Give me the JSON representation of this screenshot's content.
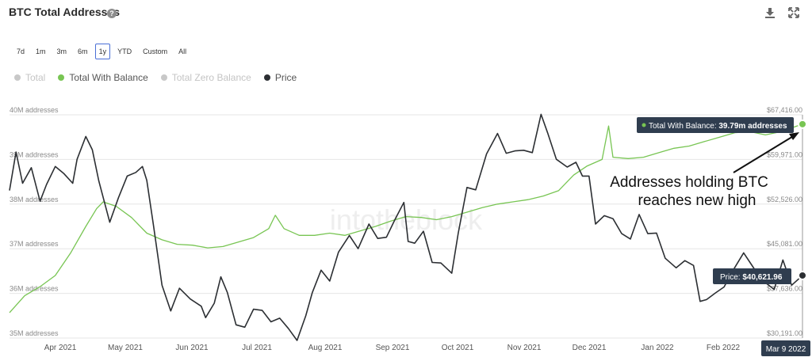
{
  "header": {
    "title": "BTC Total Addresses",
    "help_icon": "question-icon",
    "download_icon": "download-icon",
    "fullscreen_icon": "expand-icon"
  },
  "range_buttons": [
    {
      "label": "7d",
      "active": false
    },
    {
      "label": "1m",
      "active": false
    },
    {
      "label": "3m",
      "active": false
    },
    {
      "label": "6m",
      "active": false
    },
    {
      "label": "1y",
      "active": true
    },
    {
      "label": "YTD",
      "active": false
    },
    {
      "label": "Custom",
      "active": false
    },
    {
      "label": "All",
      "active": false
    }
  ],
  "legend": [
    {
      "label": "Total",
      "color": "#c8c8c8",
      "enabled": false
    },
    {
      "label": "Total With Balance",
      "color": "#78c553",
      "enabled": true
    },
    {
      "label": "Total Zero Balance",
      "color": "#c8c8c8",
      "enabled": false
    },
    {
      "label": "Price",
      "color": "#2c2f33",
      "enabled": true
    }
  ],
  "chart_data": {
    "type": "line",
    "grid": true,
    "x_ticks": [
      "Apr 2021",
      "May 2021",
      "Jun 2021",
      "Jul 2021",
      "Aug 2021",
      "Sep 2021",
      "Oct 2021",
      "Nov 2021",
      "Dec 2021",
      "Jan 2022",
      "Feb 2022"
    ],
    "y_left_ticks": [
      "35M addresses",
      "36M addresses",
      "37M addresses",
      "38M addresses",
      "39M addresses",
      "40M addresses"
    ],
    "y_left_range": [
      35000000,
      40000000
    ],
    "y_right_ticks": [
      "$30,191.00",
      "$37,636.00",
      "$45,081.00",
      "$52,526.00",
      "$59,971.00",
      "$67,416.00"
    ],
    "y_right_range": [
      30191,
      67416
    ],
    "x_range": [
      "2021-03-10",
      "2022-03-09"
    ],
    "series": [
      {
        "name": "Total With Balance",
        "color": "#78c553",
        "axis": "left",
        "points": [
          [
            "2021-03-10",
            35.57
          ],
          [
            "2021-03-17",
            35.95
          ],
          [
            "2021-03-24",
            36.15
          ],
          [
            "2021-03-31",
            36.4
          ],
          [
            "2021-04-07",
            36.9
          ],
          [
            "2021-04-14",
            37.5
          ],
          [
            "2021-04-19",
            37.9
          ],
          [
            "2021-04-22",
            38.05
          ],
          [
            "2021-04-28",
            37.95
          ],
          [
            "2021-05-05",
            37.7
          ],
          [
            "2021-05-12",
            37.35
          ],
          [
            "2021-05-19",
            37.2
          ],
          [
            "2021-05-26",
            37.1
          ],
          [
            "2021-06-02",
            37.08
          ],
          [
            "2021-06-09",
            37.02
          ],
          [
            "2021-06-16",
            37.05
          ],
          [
            "2021-06-23",
            37.15
          ],
          [
            "2021-06-30",
            37.25
          ],
          [
            "2021-07-07",
            37.45
          ],
          [
            "2021-07-10",
            37.75
          ],
          [
            "2021-07-14",
            37.45
          ],
          [
            "2021-07-21",
            37.3
          ],
          [
            "2021-07-28",
            37.3
          ],
          [
            "2021-08-04",
            37.35
          ],
          [
            "2021-08-11",
            37.3
          ],
          [
            "2021-08-18",
            37.4
          ],
          [
            "2021-08-25",
            37.5
          ],
          [
            "2021-09-01",
            37.62
          ],
          [
            "2021-09-08",
            37.72
          ],
          [
            "2021-09-15",
            37.7
          ],
          [
            "2021-09-22",
            37.65
          ],
          [
            "2021-09-29",
            37.72
          ],
          [
            "2021-10-06",
            37.82
          ],
          [
            "2021-10-13",
            37.92
          ],
          [
            "2021-10-20",
            38.0
          ],
          [
            "2021-10-27",
            38.05
          ],
          [
            "2021-11-03",
            38.1
          ],
          [
            "2021-11-10",
            38.18
          ],
          [
            "2021-11-17",
            38.3
          ],
          [
            "2021-11-24",
            38.65
          ],
          [
            "2021-11-30",
            38.85
          ],
          [
            "2021-12-07",
            39.0
          ],
          [
            "2021-12-10",
            39.75
          ],
          [
            "2021-12-12",
            39.05
          ],
          [
            "2021-12-19",
            39.02
          ],
          [
            "2021-12-26",
            39.05
          ],
          [
            "2022-01-02",
            39.15
          ],
          [
            "2022-01-09",
            39.25
          ],
          [
            "2022-01-16",
            39.3
          ],
          [
            "2022-01-23",
            39.4
          ],
          [
            "2022-01-30",
            39.5
          ],
          [
            "2022-02-06",
            39.6
          ],
          [
            "2022-02-13",
            39.62
          ],
          [
            "2022-02-20",
            39.55
          ],
          [
            "2022-02-27",
            39.62
          ],
          [
            "2022-03-09",
            39.79
          ]
        ]
      },
      {
        "name": "Price",
        "color": "#2c2f33",
        "axis": "right",
        "points": [
          [
            "2021-03-10",
            54800
          ],
          [
            "2021-03-13",
            61200
          ],
          [
            "2021-03-16",
            56000
          ],
          [
            "2021-03-20",
            58600
          ],
          [
            "2021-03-24",
            53000
          ],
          [
            "2021-03-27",
            55800
          ],
          [
            "2021-03-31",
            58800
          ],
          [
            "2021-04-04",
            57600
          ],
          [
            "2021-04-08",
            56000
          ],
          [
            "2021-04-10",
            60000
          ],
          [
            "2021-04-14",
            63800
          ],
          [
            "2021-04-17",
            61600
          ],
          [
            "2021-04-20",
            56400
          ],
          [
            "2021-04-25",
            49500
          ],
          [
            "2021-04-29",
            53600
          ],
          [
            "2021-05-03",
            57200
          ],
          [
            "2021-05-07",
            57800
          ],
          [
            "2021-05-10",
            58800
          ],
          [
            "2021-05-12",
            56500
          ],
          [
            "2021-05-15",
            49200
          ],
          [
            "2021-05-19",
            39000
          ],
          [
            "2021-05-23",
            34700
          ],
          [
            "2021-05-27",
            38500
          ],
          [
            "2021-06-01",
            36700
          ],
          [
            "2021-06-06",
            35500
          ],
          [
            "2021-06-08",
            33600
          ],
          [
            "2021-06-12",
            36000
          ],
          [
            "2021-06-15",
            40400
          ],
          [
            "2021-06-18",
            37800
          ],
          [
            "2021-06-22",
            32400
          ],
          [
            "2021-06-26",
            32000
          ],
          [
            "2021-06-30",
            35000
          ],
          [
            "2021-07-04",
            34800
          ],
          [
            "2021-07-08",
            32900
          ],
          [
            "2021-07-12",
            33500
          ],
          [
            "2021-07-16",
            31800
          ],
          [
            "2021-07-20",
            29800
          ],
          [
            "2021-07-24",
            33900
          ],
          [
            "2021-07-27",
            37800
          ],
          [
            "2021-07-31",
            41500
          ],
          [
            "2021-08-04",
            39700
          ],
          [
            "2021-08-08",
            44500
          ],
          [
            "2021-08-13",
            47300
          ],
          [
            "2021-08-17",
            45100
          ],
          [
            "2021-08-22",
            49200
          ],
          [
            "2021-08-26",
            46800
          ],
          [
            "2021-08-30",
            47000
          ],
          [
            "2021-09-03",
            50000
          ],
          [
            "2021-09-07",
            52800
          ],
          [
            "2021-09-09",
            46300
          ],
          [
            "2021-09-12",
            46000
          ],
          [
            "2021-09-16",
            48000
          ],
          [
            "2021-09-20",
            42800
          ],
          [
            "2021-09-24",
            42700
          ],
          [
            "2021-09-29",
            41000
          ],
          [
            "2021-10-02",
            47700
          ],
          [
            "2021-10-06",
            55300
          ],
          [
            "2021-10-10",
            54900
          ],
          [
            "2021-10-15",
            60900
          ],
          [
            "2021-10-20",
            64300
          ],
          [
            "2021-10-24",
            61000
          ],
          [
            "2021-10-28",
            61400
          ],
          [
            "2021-11-01",
            61500
          ],
          [
            "2021-11-05",
            61100
          ],
          [
            "2021-11-09",
            67500
          ],
          [
            "2021-11-12",
            64400
          ],
          [
            "2021-11-16",
            60000
          ],
          [
            "2021-11-21",
            58700
          ],
          [
            "2021-11-25",
            59500
          ],
          [
            "2021-11-28",
            57200
          ],
          [
            "2021-12-01",
            57200
          ],
          [
            "2021-12-04",
            49200
          ],
          [
            "2021-12-08",
            50600
          ],
          [
            "2021-12-12",
            50100
          ],
          [
            "2021-12-16",
            47600
          ],
          [
            "2021-12-20",
            46700
          ],
          [
            "2021-12-24",
            50800
          ],
          [
            "2021-12-28",
            47600
          ],
          [
            "2022-01-01",
            47700
          ],
          [
            "2022-01-05",
            43500
          ],
          [
            "2022-01-10",
            41900
          ],
          [
            "2022-01-14",
            43100
          ],
          [
            "2022-01-18",
            42300
          ],
          [
            "2022-01-21",
            36300
          ],
          [
            "2022-01-24",
            36600
          ],
          [
            "2022-01-28",
            37700
          ],
          [
            "2022-02-01",
            38700
          ],
          [
            "2022-02-05",
            41400
          ],
          [
            "2022-02-10",
            44400
          ],
          [
            "2022-02-14",
            42200
          ],
          [
            "2022-02-18",
            40000
          ],
          [
            "2022-02-24",
            38300
          ],
          [
            "2022-02-28",
            43200
          ],
          [
            "2022-03-04",
            39000
          ],
          [
            "2022-03-09",
            40621.96
          ]
        ]
      }
    ],
    "tooltips": {
      "balance": {
        "label": "Total With Balance:",
        "value": "39.79m addresses"
      },
      "price": {
        "label": "Price:",
        "value": "$40,621.96"
      }
    },
    "x_hover_label": "Mar 9 2022",
    "annotation": {
      "line1": "Addresses holding BTC",
      "line2": "reaches new high"
    },
    "watermark": "intotheblock"
  }
}
